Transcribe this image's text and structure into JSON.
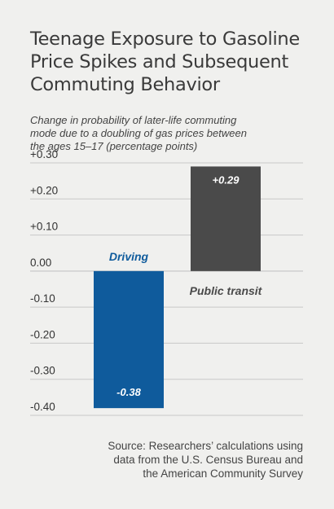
{
  "title_lines": [
    "Teenage Exposure to Gasoline",
    "Price Spikes and Subsequent",
    "Commuting Behavior"
  ],
  "subtitle_lines": [
    "Change in probability of later-life commuting",
    "mode due to a doubling of gas prices between",
    "the ages 15–17 (percentage points)"
  ],
  "source_lines": [
    "Source: Researchers’ calculations using",
    "data from the U.S. Census Bureau and",
    "the American Community Survey"
  ],
  "colors": {
    "driving": "#0f5b9c",
    "public_transit": "#4a4a4a",
    "background": "#f0f0ee",
    "gridline": "#c8c8c8"
  },
  "chart_data": {
    "type": "bar",
    "categories": [
      "Driving",
      "Public transit"
    ],
    "values": [
      -0.38,
      0.29
    ],
    "value_labels": [
      "-0.38",
      "+0.29"
    ],
    "ylim": [
      -0.4,
      0.3
    ],
    "yticks": [
      0.3,
      0.2,
      0.1,
      0.0,
      -0.1,
      -0.2,
      -0.3,
      -0.4
    ],
    "ytick_labels": [
      "+0.30",
      "+0.20",
      "+0.10",
      "0.00",
      "-0.10",
      "-0.20",
      "-0.30",
      "-0.40"
    ],
    "grid": true
  }
}
